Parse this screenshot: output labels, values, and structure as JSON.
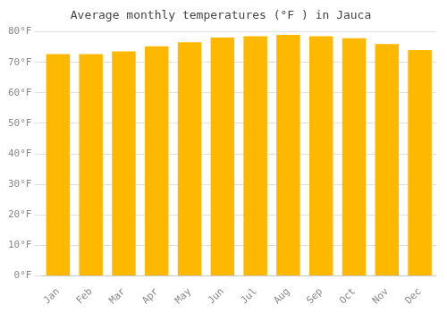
{
  "chart_data": {
    "type": "bar",
    "title": "Average monthly temperatures (°F ) in Jauca",
    "categories": [
      "Jan",
      "Feb",
      "Mar",
      "Apr",
      "May",
      "Jun",
      "Jul",
      "Aug",
      "Sep",
      "Oct",
      "Nov",
      "Dec"
    ],
    "values": [
      72.7,
      72.7,
      73.6,
      75.3,
      76.6,
      78.1,
      78.6,
      79.0,
      78.6,
      77.9,
      76.0,
      74.0
    ],
    "color": "#FFB800",
    "ylim": [
      0,
      80
    ],
    "yticks": [
      {
        "value": 0,
        "label": "0°F"
      },
      {
        "value": 10,
        "label": "10°F"
      },
      {
        "value": 20,
        "label": "20°F"
      },
      {
        "value": 30,
        "label": "30°F"
      },
      {
        "value": 40,
        "label": "40°F"
      },
      {
        "value": 50,
        "label": "50°F"
      },
      {
        "value": 60,
        "label": "60°F"
      },
      {
        "value": 70,
        "label": "70°F"
      },
      {
        "value": 80,
        "label": "80°F"
      }
    ],
    "grid": true
  }
}
